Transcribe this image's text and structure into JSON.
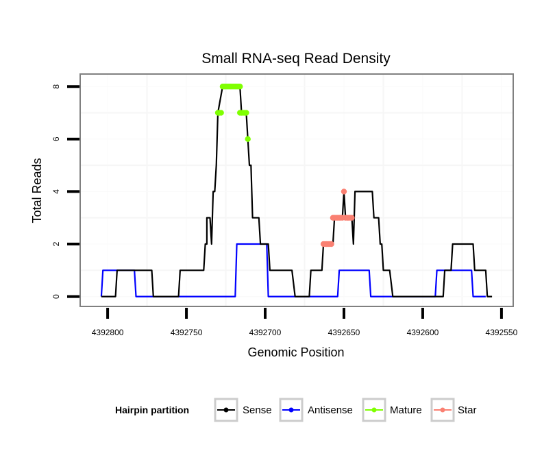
{
  "chart_data": {
    "type": "line",
    "title": "Small RNA-seq Read Density",
    "xlabel": "Genomic Position",
    "ylabel": "Total Reads",
    "xlim": [
      4392817,
      4392543
    ],
    "x_reversed": true,
    "ylim": [
      -0.35,
      8.45
    ],
    "xticks": [
      4392800,
      4392750,
      4392700,
      4392650,
      4392600,
      4392550
    ],
    "xtick_labels": [
      "4392800",
      "4392750",
      "4392700",
      "4392650",
      "4392600",
      "4392550"
    ],
    "yticks": [
      0,
      2,
      4,
      6,
      8
    ],
    "ytick_labels": [
      "0",
      "2",
      "4",
      "6",
      "8"
    ],
    "grid": true,
    "legend": {
      "title": "Hairpin partition",
      "position": "bottom",
      "entries": [
        {
          "name": "Sense",
          "color": "#000000"
        },
        {
          "name": "Antisense",
          "color": "#0000ff"
        },
        {
          "name": "Mature",
          "color": "#7fff00"
        },
        {
          "name": "Star",
          "color": "#fa8072"
        }
      ]
    },
    "series": [
      {
        "name": "Sense",
        "kind": "line",
        "color": "#000000",
        "points": [
          [
            4392804,
            0
          ],
          [
            4392795,
            0
          ],
          [
            4392794,
            1
          ],
          [
            4392772,
            1
          ],
          [
            4392771,
            0
          ],
          [
            4392755,
            0
          ],
          [
            4392754,
            1
          ],
          [
            4392739,
            1
          ],
          [
            4392738,
            2
          ],
          [
            4392737,
            2
          ],
          [
            4392737,
            3
          ],
          [
            4392735,
            3
          ],
          [
            4392734,
            2
          ],
          [
            4392733,
            4
          ],
          [
            4392732,
            4
          ],
          [
            4392731,
            5
          ],
          [
            4392730,
            7
          ],
          [
            4392727,
            8
          ],
          [
            4392716,
            8
          ],
          [
            4392715,
            7
          ],
          [
            4392712,
            7
          ],
          [
            4392711,
            6
          ],
          [
            4392710,
            5
          ],
          [
            4392709,
            5
          ],
          [
            4392708,
            3
          ],
          [
            4392704,
            3
          ],
          [
            4392703,
            2
          ],
          [
            4392698,
            2
          ],
          [
            4392697,
            1
          ],
          [
            4392683,
            1
          ],
          [
            4392681,
            0
          ],
          [
            4392672,
            0
          ],
          [
            4392671,
            1
          ],
          [
            4392664,
            1
          ],
          [
            4392663,
            2
          ],
          [
            4392657,
            2
          ],
          [
            4392656,
            3
          ],
          [
            4392651,
            3
          ],
          [
            4392650,
            4
          ],
          [
            4392649,
            3
          ],
          [
            4392645,
            3
          ],
          [
            4392644,
            2
          ],
          [
            4392643,
            4
          ],
          [
            4392632,
            4
          ],
          [
            4392631,
            3
          ],
          [
            4392628,
            3
          ],
          [
            4392627,
            2
          ],
          [
            4392626,
            2
          ],
          [
            4392625,
            1
          ],
          [
            4392621,
            1
          ],
          [
            4392619,
            0
          ],
          [
            4392587,
            0
          ],
          [
            4392586,
            1
          ],
          [
            4392582,
            1
          ],
          [
            4392581,
            2
          ],
          [
            4392568,
            2
          ],
          [
            4392567,
            1
          ],
          [
            4392560,
            1
          ],
          [
            4392559,
            0
          ],
          [
            4392556,
            0
          ]
        ]
      },
      {
        "name": "Antisense",
        "kind": "line",
        "color": "#0000ff",
        "points": [
          [
            4392804,
            0
          ],
          [
            4392803,
            1
          ],
          [
            4392783,
            1
          ],
          [
            4392782,
            0
          ],
          [
            4392719,
            0
          ],
          [
            4392718,
            2
          ],
          [
            4392699,
            2
          ],
          [
            4392698,
            0
          ],
          [
            4392654,
            0
          ],
          [
            4392653,
            1
          ],
          [
            4392634,
            1
          ],
          [
            4392633,
            0
          ],
          [
            4392592,
            0
          ],
          [
            4392591,
            1
          ],
          [
            4392569,
            1
          ],
          [
            4392568,
            0
          ],
          [
            4392560,
            0
          ]
        ]
      },
      {
        "name": "Mature",
        "kind": "points",
        "color": "#7fff00",
        "points": [
          [
            4392730,
            7
          ],
          [
            4392729,
            7
          ],
          [
            4392728,
            7
          ],
          [
            4392727,
            8
          ],
          [
            4392726,
            8
          ],
          [
            4392725,
            8
          ],
          [
            4392724,
            8
          ],
          [
            4392723,
            8
          ],
          [
            4392722,
            8
          ],
          [
            4392721,
            8
          ],
          [
            4392720,
            8
          ],
          [
            4392719,
            8
          ],
          [
            4392718,
            8
          ],
          [
            4392717,
            8
          ],
          [
            4392716,
            8
          ],
          [
            4392716,
            7
          ],
          [
            4392715,
            7
          ],
          [
            4392714,
            7
          ],
          [
            4392713,
            7
          ],
          [
            4392712,
            7
          ],
          [
            4392711,
            6
          ]
        ]
      },
      {
        "name": "Star",
        "kind": "points",
        "color": "#fa8072",
        "points": [
          [
            4392663,
            2
          ],
          [
            4392662,
            2
          ],
          [
            4392661,
            2
          ],
          [
            4392660,
            2
          ],
          [
            4392659,
            2
          ],
          [
            4392658,
            2
          ],
          [
            4392657,
            3
          ],
          [
            4392656,
            3
          ],
          [
            4392655,
            3
          ],
          [
            4392654,
            3
          ],
          [
            4392653,
            3
          ],
          [
            4392652,
            3
          ],
          [
            4392651,
            3
          ],
          [
            4392650,
            4
          ],
          [
            4392649,
            3
          ],
          [
            4392648,
            3
          ],
          [
            4392647,
            3
          ],
          [
            4392646,
            3
          ],
          [
            4392645,
            3
          ]
        ]
      }
    ]
  }
}
